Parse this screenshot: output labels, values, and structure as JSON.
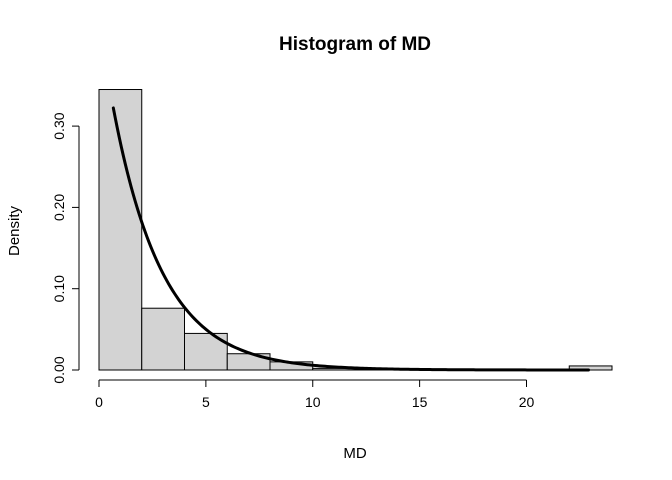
{
  "chart_data": {
    "type": "histogram",
    "title": "Histogram of MD",
    "xlabel": "MD",
    "ylabel": "Density",
    "bar_color": "#d3d3d3",
    "bin_edges": [
      0,
      2,
      4,
      6,
      8,
      10,
      12,
      14,
      16,
      18,
      20,
      22,
      24
    ],
    "densities": [
      0.345,
      0.076,
      0.045,
      0.02,
      0.01,
      0.002,
      0.0005,
      0.0005,
      0.0005,
      0.0005,
      0.0005,
      0.005
    ],
    "xlim": [
      0,
      24
    ],
    "ylim": [
      0,
      0.35
    ],
    "x_ticks": [
      0,
      5,
      10,
      15,
      20
    ],
    "x_tick_labels": [
      "0",
      "5",
      "10",
      "15",
      "20"
    ],
    "y_ticks": [
      0,
      0.1,
      0.2,
      0.3
    ],
    "y_tick_labels": [
      "0.00",
      "0.10",
      "0.20",
      "0.30"
    ],
    "density_curve": {
      "type": "exponential",
      "rate": 0.43,
      "x_range": [
        0.67,
        22.9
      ],
      "color": "#000000"
    }
  }
}
